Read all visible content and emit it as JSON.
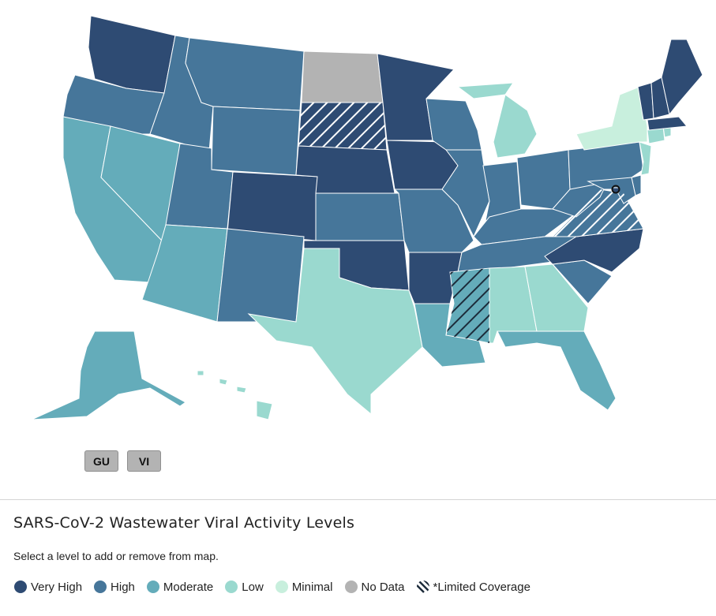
{
  "map": {
    "level_colors": {
      "very_high": "#2e4b73",
      "high": "#46769a",
      "moderate": "#64acba",
      "low": "#9ad9cf",
      "minimal": "#c8efdd",
      "no_data": "#b3b3b3",
      "hatch": "#1c2b3a"
    },
    "states": [
      {
        "abbr": "WA",
        "level": "very_high"
      },
      {
        "abbr": "OR",
        "level": "high"
      },
      {
        "abbr": "CA",
        "level": "moderate"
      },
      {
        "abbr": "NV",
        "level": "moderate"
      },
      {
        "abbr": "ID",
        "level": "high"
      },
      {
        "abbr": "MT",
        "level": "high"
      },
      {
        "abbr": "WY",
        "level": "high"
      },
      {
        "abbr": "UT",
        "level": "high"
      },
      {
        "abbr": "AZ",
        "level": "moderate"
      },
      {
        "abbr": "CO",
        "level": "very_high"
      },
      {
        "abbr": "NM",
        "level": "high"
      },
      {
        "abbr": "ND",
        "level": "no_data"
      },
      {
        "abbr": "SD",
        "level": "very_high",
        "limited": true
      },
      {
        "abbr": "NE",
        "level": "very_high"
      },
      {
        "abbr": "KS",
        "level": "high"
      },
      {
        "abbr": "OK",
        "level": "very_high"
      },
      {
        "abbr": "TX",
        "level": "low"
      },
      {
        "abbr": "MN",
        "level": "very_high"
      },
      {
        "abbr": "IA",
        "level": "very_high"
      },
      {
        "abbr": "MO",
        "level": "high"
      },
      {
        "abbr": "AR",
        "level": "very_high"
      },
      {
        "abbr": "LA",
        "level": "moderate"
      },
      {
        "abbr": "WI",
        "level": "high"
      },
      {
        "abbr": "IL",
        "level": "high"
      },
      {
        "abbr": "MI",
        "level": "low"
      },
      {
        "abbr": "IN",
        "level": "high"
      },
      {
        "abbr": "OH",
        "level": "high"
      },
      {
        "abbr": "KY",
        "level": "high"
      },
      {
        "abbr": "TN",
        "level": "high"
      },
      {
        "abbr": "MS",
        "level": "moderate",
        "limited": true
      },
      {
        "abbr": "AL",
        "level": "low"
      },
      {
        "abbr": "GA",
        "level": "low"
      },
      {
        "abbr": "FL",
        "level": "moderate"
      },
      {
        "abbr": "SC",
        "level": "high"
      },
      {
        "abbr": "NC",
        "level": "very_high"
      },
      {
        "abbr": "VA",
        "level": "high",
        "limited": true
      },
      {
        "abbr": "WV",
        "level": "high"
      },
      {
        "abbr": "PA",
        "level": "high"
      },
      {
        "abbr": "NY",
        "level": "minimal"
      },
      {
        "abbr": "NJ",
        "level": "low"
      },
      {
        "abbr": "DE",
        "level": "high"
      },
      {
        "abbr": "MD",
        "level": "high"
      },
      {
        "abbr": "DC",
        "level": "very_high"
      },
      {
        "abbr": "CT",
        "level": "low"
      },
      {
        "abbr": "RI",
        "level": "low"
      },
      {
        "abbr": "MA",
        "level": "very_high"
      },
      {
        "abbr": "VT",
        "level": "very_high"
      },
      {
        "abbr": "NH",
        "level": "very_high"
      },
      {
        "abbr": "ME",
        "level": "very_high"
      },
      {
        "abbr": "AK",
        "level": "moderate"
      },
      {
        "abbr": "HI",
        "level": "low"
      }
    ]
  },
  "territories": [
    {
      "label": "GU"
    },
    {
      "label": "VI"
    }
  ],
  "legend": {
    "title": "SARS-CoV-2 Wastewater Viral Activity Levels",
    "instructions": "Select a level to add or remove from map.",
    "items": [
      {
        "label": "Very High",
        "level": "very_high"
      },
      {
        "label": "High",
        "level": "high"
      },
      {
        "label": "Moderate",
        "level": "moderate"
      },
      {
        "label": "Low",
        "level": "low"
      },
      {
        "label": "Minimal",
        "level": "minimal"
      },
      {
        "label": "No Data",
        "level": "no_data"
      },
      {
        "label": "*Limited Coverage",
        "level": "limited"
      }
    ]
  }
}
